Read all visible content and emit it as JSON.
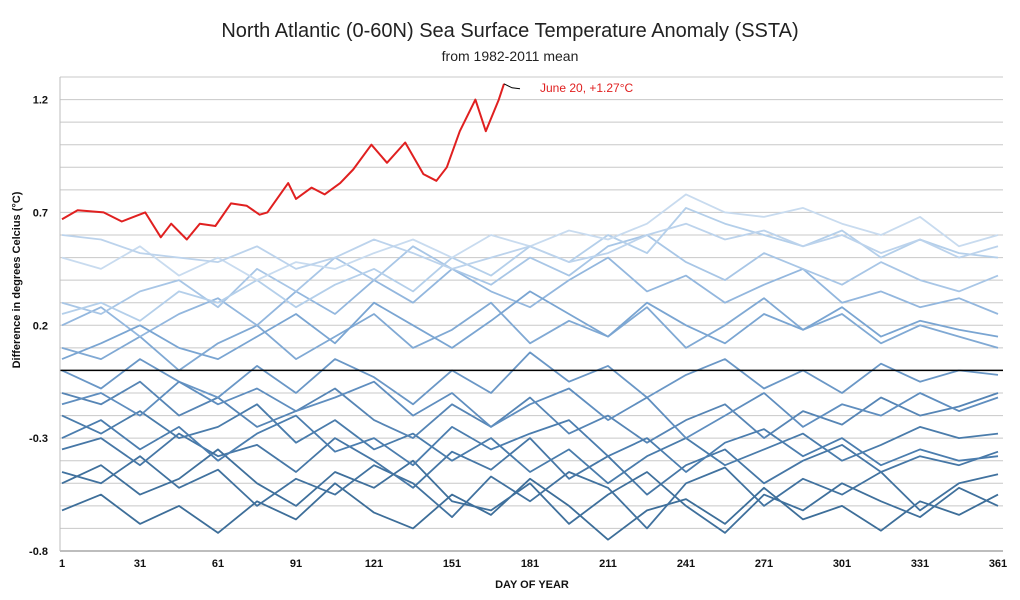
{
  "chart_data": {
    "type": "line",
    "title": "North Atlantic (0-60N) Sea Surface Temperature Anomaly (SSTA)",
    "subtitle": "from 1982-2011 mean",
    "xlabel": "DAY OF YEAR",
    "ylabel": "Difference in degrees Celcius (°C)",
    "xlim": [
      1,
      364
    ],
    "ylim": [
      -0.8,
      1.3
    ],
    "xticks": [
      "1",
      "31",
      "61",
      "91",
      "121",
      "151",
      "181",
      "211",
      "241",
      "271",
      "301",
      "331",
      "361"
    ],
    "yticks": [
      "1.2",
      "0.7",
      "0.2",
      "-0.3",
      "-0.8"
    ],
    "grid": true,
    "grid_step": 0.1,
    "zero_line_color": "#000000",
    "highlight": {
      "color": "#e02020",
      "annotation": "June 20, +1.27°C",
      "x": [
        1,
        7,
        17,
        24,
        33,
        39,
        43,
        49,
        54,
        60,
        66,
        72,
        77,
        80,
        88,
        91,
        97,
        102,
        108,
        113,
        120,
        126,
        133,
        140,
        145,
        149,
        154,
        160,
        164,
        169,
        171
      ],
      "y": [
        0.67,
        0.71,
        0.7,
        0.66,
        0.7,
        0.59,
        0.65,
        0.58,
        0.65,
        0.64,
        0.74,
        0.73,
        0.69,
        0.7,
        0.83,
        0.76,
        0.81,
        0.78,
        0.83,
        0.89,
        1.0,
        0.92,
        1.01,
        0.87,
        0.84,
        0.9,
        1.06,
        1.2,
        1.06,
        1.2,
        1.27
      ]
    },
    "background_series_x": [
      1,
      16,
      31,
      46,
      61,
      76,
      91,
      106,
      121,
      136,
      151,
      166,
      181,
      196,
      211,
      226,
      241,
      256,
      271,
      286,
      301,
      316,
      331,
      346,
      361
    ],
    "background_series": [
      {
        "color": "#3d6e99",
        "values": [
          -0.62,
          -0.55,
          -0.68,
          -0.6,
          -0.72,
          -0.58,
          -0.66,
          -0.5,
          -0.63,
          -0.7,
          -0.55,
          -0.64,
          -0.48,
          -0.6,
          -0.75,
          -0.62,
          -0.57,
          -0.68,
          -0.52,
          -0.66,
          -0.6,
          -0.71,
          -0.58,
          -0.64,
          -0.55
        ]
      },
      {
        "color": "#41729f",
        "values": [
          -0.45,
          -0.5,
          -0.38,
          -0.52,
          -0.44,
          -0.6,
          -0.48,
          -0.55,
          -0.42,
          -0.5,
          -0.65,
          -0.47,
          -0.58,
          -0.45,
          -0.52,
          -0.7,
          -0.5,
          -0.43,
          -0.6,
          -0.48,
          -0.55,
          -0.45,
          -0.62,
          -0.5,
          -0.46
        ]
      },
      {
        "color": "#4677a6",
        "values": [
          -0.35,
          -0.3,
          -0.42,
          -0.28,
          -0.38,
          -0.33,
          -0.45,
          -0.3,
          -0.4,
          -0.52,
          -0.36,
          -0.44,
          -0.3,
          -0.48,
          -0.38,
          -0.55,
          -0.42,
          -0.35,
          -0.5,
          -0.4,
          -0.33,
          -0.45,
          -0.38,
          -0.42,
          -0.36
        ]
      },
      {
        "color": "#4a7cab",
        "values": [
          -0.2,
          -0.28,
          -0.18,
          -0.3,
          -0.25,
          -0.15,
          -0.32,
          -0.22,
          -0.35,
          -0.28,
          -0.4,
          -0.3,
          -0.45,
          -0.35,
          -0.5,
          -0.38,
          -0.3,
          -0.42,
          -0.35,
          -0.28,
          -0.4,
          -0.33,
          -0.25,
          -0.3,
          -0.28
        ]
      },
      {
        "color": "#5685b5",
        "values": [
          -0.1,
          -0.15,
          -0.05,
          -0.2,
          -0.12,
          -0.25,
          -0.18,
          -0.08,
          -0.22,
          -0.3,
          -0.15,
          -0.25,
          -0.12,
          -0.28,
          -0.2,
          -0.32,
          -0.22,
          -0.15,
          -0.3,
          -0.18,
          -0.24,
          -0.12,
          -0.2,
          -0.16,
          -0.1
        ]
      },
      {
        "color": "#3f709c",
        "values": [
          -0.5,
          -0.42,
          -0.55,
          -0.48,
          -0.35,
          -0.5,
          -0.6,
          -0.45,
          -0.52,
          -0.4,
          -0.58,
          -0.62,
          -0.5,
          -0.68,
          -0.55,
          -0.45,
          -0.6,
          -0.72,
          -0.55,
          -0.62,
          -0.5,
          -0.58,
          -0.65,
          -0.52,
          -0.6
        ]
      },
      {
        "color": "#4b7dae",
        "values": [
          -0.3,
          -0.22,
          -0.35,
          -0.25,
          -0.4,
          -0.28,
          -0.2,
          -0.36,
          -0.3,
          -0.42,
          -0.25,
          -0.35,
          -0.28,
          -0.22,
          -0.38,
          -0.3,
          -0.45,
          -0.32,
          -0.26,
          -0.38,
          -0.3,
          -0.42,
          -0.35,
          -0.4,
          -0.38
        ]
      },
      {
        "color": "#6a97c6",
        "values": [
          0.0,
          -0.08,
          0.05,
          -0.05,
          -0.12,
          0.02,
          -0.1,
          0.05,
          -0.03,
          -0.15,
          0.0,
          -0.1,
          0.08,
          -0.05,
          0.02,
          -0.12,
          -0.02,
          0.05,
          -0.08,
          0.0,
          -0.1,
          0.03,
          -0.05,
          0.0,
          -0.02
        ]
      },
      {
        "color": "#80a9d4",
        "values": [
          0.1,
          0.05,
          0.15,
          0.0,
          0.12,
          0.2,
          0.05,
          0.15,
          0.25,
          0.1,
          0.18,
          0.3,
          0.12,
          0.22,
          0.15,
          0.28,
          0.1,
          0.2,
          0.32,
          0.18,
          0.25,
          0.12,
          0.2,
          0.15,
          0.1
        ]
      },
      {
        "color": "#93b7de",
        "values": [
          0.2,
          0.28,
          0.15,
          0.25,
          0.32,
          0.2,
          0.35,
          0.25,
          0.4,
          0.3,
          0.45,
          0.35,
          0.28,
          0.4,
          0.5,
          0.35,
          0.42,
          0.3,
          0.38,
          0.45,
          0.3,
          0.35,
          0.28,
          0.32,
          0.25
        ]
      },
      {
        "color": "#7aa5d2",
        "values": [
          0.05,
          0.12,
          0.2,
          0.1,
          0.05,
          0.15,
          0.25,
          0.12,
          0.3,
          0.2,
          0.1,
          0.22,
          0.35,
          0.25,
          0.15,
          0.3,
          0.2,
          0.12,
          0.25,
          0.18,
          0.28,
          0.15,
          0.22,
          0.18,
          0.15
        ]
      },
      {
        "color": "#a8c6e6",
        "values": [
          0.3,
          0.25,
          0.35,
          0.4,
          0.28,
          0.45,
          0.35,
          0.5,
          0.4,
          0.55,
          0.45,
          0.38,
          0.5,
          0.42,
          0.55,
          0.6,
          0.48,
          0.4,
          0.52,
          0.45,
          0.38,
          0.48,
          0.4,
          0.35,
          0.42
        ]
      },
      {
        "color": "#b4cfea",
        "values": [
          0.25,
          0.3,
          0.22,
          0.35,
          0.3,
          0.4,
          0.28,
          0.38,
          0.45,
          0.35,
          0.5,
          0.42,
          0.55,
          0.48,
          0.6,
          0.52,
          0.72,
          0.65,
          0.6,
          0.55,
          0.62,
          0.5,
          0.58,
          0.52,
          0.5
        ]
      },
      {
        "color": "#c8dbef",
        "values": [
          0.5,
          0.45,
          0.55,
          0.42,
          0.5,
          0.4,
          0.48,
          0.45,
          0.52,
          0.58,
          0.5,
          0.6,
          0.55,
          0.62,
          0.58,
          0.65,
          0.78,
          0.7,
          0.68,
          0.72,
          0.65,
          0.6,
          0.68,
          0.55,
          0.6
        ]
      },
      {
        "color": "#bcd3ec",
        "values": [
          0.6,
          0.58,
          0.52,
          0.5,
          0.48,
          0.55,
          0.45,
          0.5,
          0.58,
          0.52,
          0.45,
          0.5,
          0.55,
          0.48,
          0.52,
          0.6,
          0.65,
          0.58,
          0.62,
          0.55,
          0.6,
          0.52,
          0.58,
          0.5,
          0.55
        ]
      },
      {
        "color": "#5f8ebf",
        "values": [
          -0.15,
          -0.1,
          -0.2,
          -0.05,
          -0.15,
          -0.08,
          -0.18,
          -0.12,
          -0.05,
          -0.2,
          -0.1,
          -0.25,
          -0.15,
          -0.08,
          -0.22,
          -0.12,
          -0.3,
          -0.2,
          -0.1,
          -0.25,
          -0.15,
          -0.2,
          -0.1,
          -0.18,
          -0.12
        ]
      }
    ]
  }
}
